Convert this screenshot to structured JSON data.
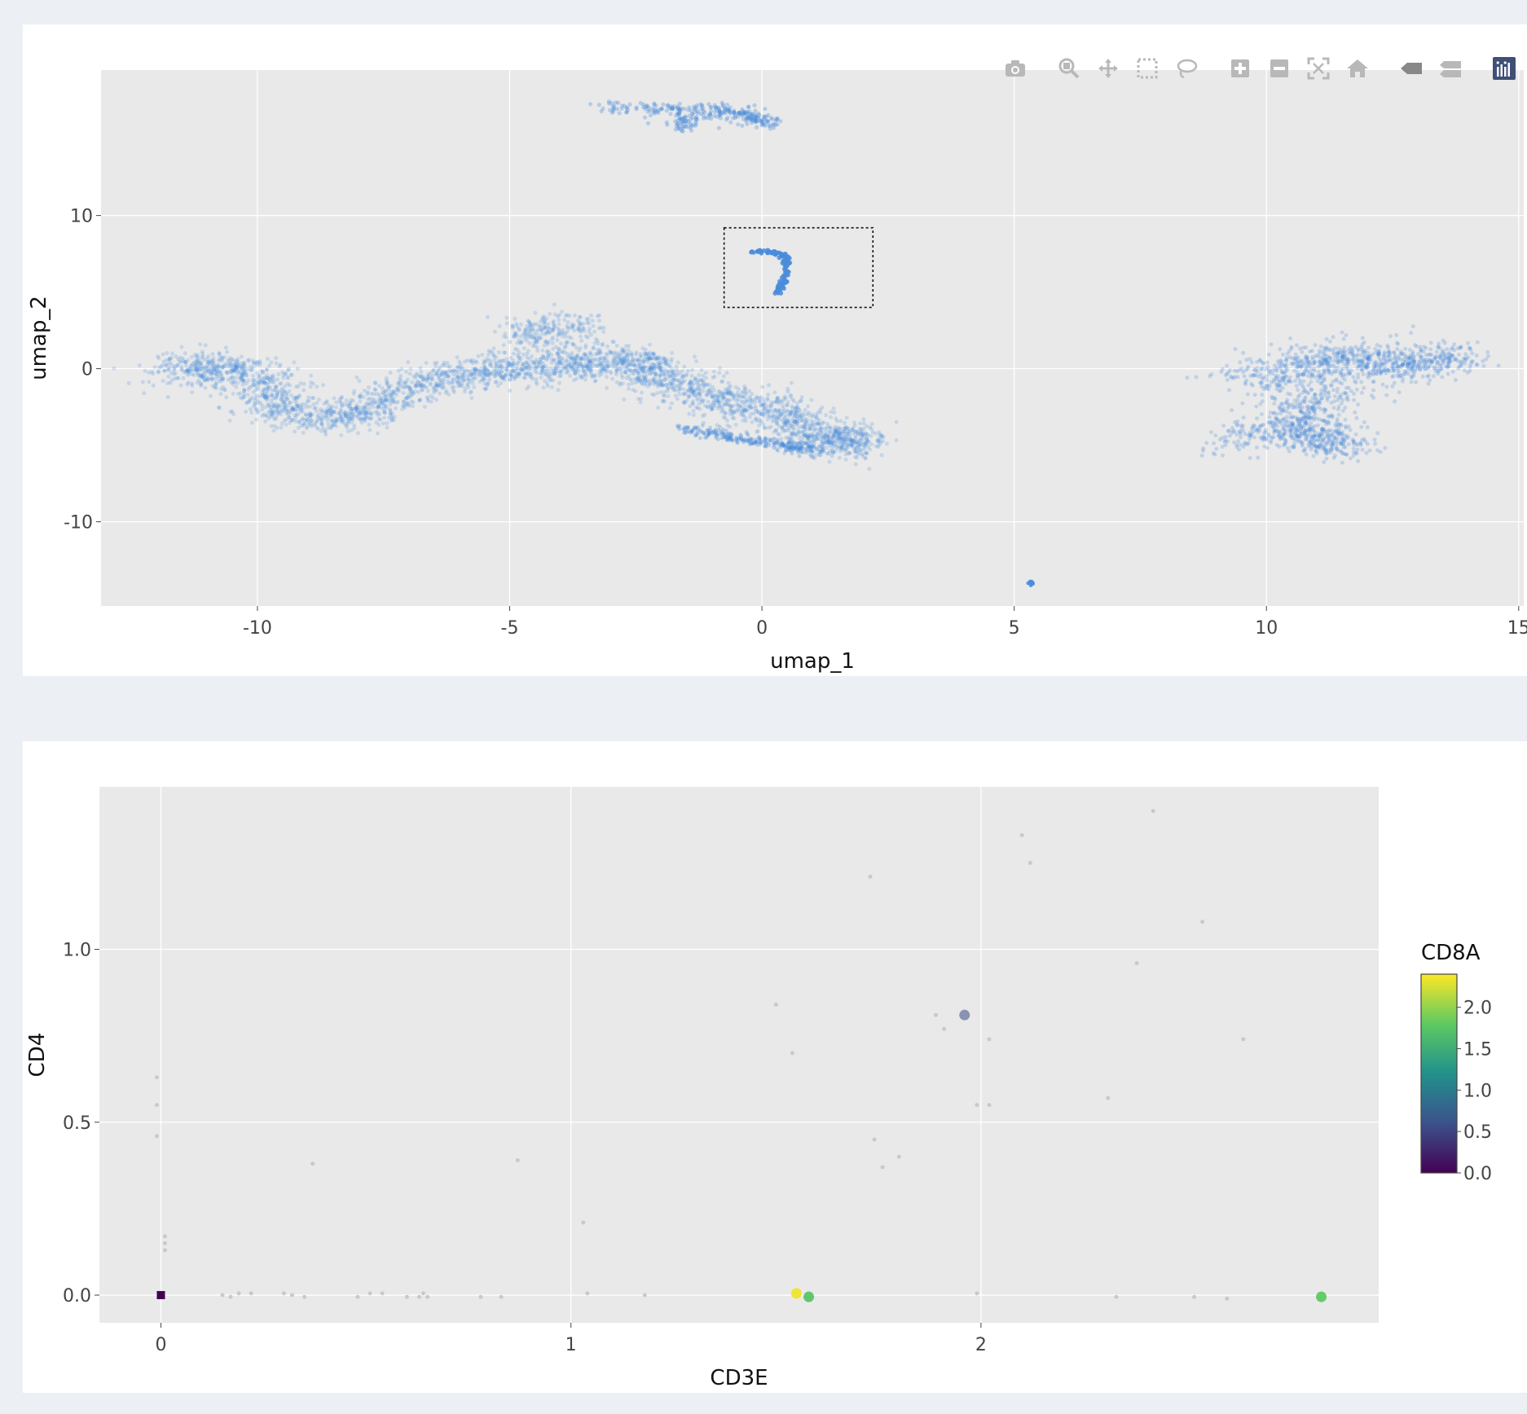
{
  "modebar": {
    "icons": [
      "camera-icon",
      "zoom-icon",
      "pan-icon",
      "box-select-icon",
      "lasso-icon",
      "zoom-in-icon",
      "zoom-out-icon",
      "autoscale-icon",
      "reset-axes-icon",
      "hover-closest-icon",
      "hover-compare-icon",
      "plotly-logo-icon"
    ]
  },
  "chart_data": [
    {
      "type": "scatter",
      "title": "",
      "xlabel": "umap_1",
      "ylabel": "umap_2",
      "xlim": [
        -13.1,
        15.1
      ],
      "ylim": [
        -15.5,
        19.5
      ],
      "xticks": [
        -10,
        -5,
        0,
        5,
        10,
        15
      ],
      "yticks": [
        -10,
        0,
        10
      ],
      "xtick_labels": [
        "-10",
        "-5",
        "0",
        "5",
        "10",
        "15"
      ],
      "ytick_labels": [
        "-10",
        "0",
        "10"
      ],
      "grid": true,
      "marker_color": "#4a8cdb",
      "selection_box": {
        "x0": -0.75,
        "x1": 2.2,
        "y0": 4.0,
        "y1": 9.2
      },
      "clusters": [
        {
          "name": "top",
          "points": [
            [
              -3.3,
              17.2
            ],
            [
              -2.5,
              17.0
            ],
            [
              -1.7,
              16.9
            ],
            [
              -0.9,
              16.9
            ],
            [
              -0.5,
              16.8
            ],
            [
              -0.1,
              16.4
            ],
            [
              0.1,
              16.0
            ],
            [
              -1.5,
              16.5
            ],
            [
              -1.6,
              15.6
            ]
          ],
          "spread": 0.22,
          "n": 320,
          "opacity": 0.32,
          "size": 2.6
        },
        {
          "name": "selected",
          "points": [
            [
              -0.2,
              7.7
            ],
            [
              0.2,
              7.6
            ],
            [
              0.45,
              7.4
            ],
            [
              0.5,
              6.8
            ],
            [
              0.45,
              6.0
            ],
            [
              0.4,
              5.4
            ],
            [
              0.3,
              4.9
            ]
          ],
          "spread": 0.06,
          "n": 110,
          "opacity": 0.85,
          "size": 2.8
        },
        {
          "name": "main-left",
          "points": [
            [
              -11.7,
              -0.1
            ],
            [
              -11.0,
              0.0
            ],
            [
              -10.0,
              -0.2
            ],
            [
              -9.7,
              -2.5
            ],
            [
              -8.6,
              -3.2
            ],
            [
              -7.6,
              -2.4
            ],
            [
              -6.6,
              -0.8
            ],
            [
              -5.6,
              -0.3
            ],
            [
              -4.6,
              0.1
            ],
            [
              -3.6,
              0.2
            ],
            [
              -2.6,
              0.6
            ],
            [
              -2.1,
              -0.3
            ],
            [
              -1.1,
              -1.9
            ],
            [
              0.1,
              -2.6
            ],
            [
              0.9,
              -4.1
            ],
            [
              1.6,
              -4.9
            ],
            [
              1.9,
              -4.5
            ],
            [
              -4.8,
              2.3
            ],
            [
              -3.6,
              2.7
            ]
          ],
          "spread": 0.55,
          "n": 3400,
          "opacity": 0.22,
          "size": 2.5
        },
        {
          "name": "lower-arc",
          "points": [
            [
              -1.6,
              -3.9
            ],
            [
              -0.6,
              -4.5
            ],
            [
              0.4,
              -5.0
            ],
            [
              1.2,
              -5.3
            ]
          ],
          "spread": 0.18,
          "n": 260,
          "opacity": 0.3,
          "size": 2.5
        },
        {
          "name": "right",
          "points": [
            [
              9.5,
              -0.1
            ],
            [
              10.3,
              -0.9
            ],
            [
              10.8,
              0.4
            ],
            [
              11.6,
              0.9
            ],
            [
              12.2,
              0.3
            ],
            [
              13.0,
              0.6
            ],
            [
              13.7,
              0.7
            ],
            [
              11.3,
              -1.6
            ],
            [
              10.6,
              -2.9
            ],
            [
              11.0,
              -4.2
            ],
            [
              11.6,
              -5.2
            ],
            [
              10.1,
              -3.9
            ],
            [
              9.4,
              -4.9
            ]
          ],
          "spread": 0.55,
          "n": 1500,
          "opacity": 0.25,
          "size": 2.5
        },
        {
          "name": "small",
          "points": [
            [
              5.35,
              -14.0
            ]
          ],
          "spread": 0.05,
          "n": 14,
          "opacity": 0.9,
          "size": 2.4
        }
      ]
    },
    {
      "type": "scatter",
      "title": "",
      "xlabel": "CD3E",
      "ylabel": "CD4",
      "xlim": [
        -0.15,
        2.97
      ],
      "ylim": [
        -0.08,
        1.47
      ],
      "xticks": [
        0,
        1,
        2
      ],
      "yticks": [
        0.0,
        0.5,
        1.0
      ],
      "xtick_labels": [
        "0",
        "1",
        "2"
      ],
      "ytick_labels": [
        "0.0",
        "0.5",
        "1.0"
      ],
      "grid": true,
      "color_var": "CD8A",
      "colorbar": {
        "title": "CD8A",
        "min": 0,
        "max": 2.4,
        "ticks": [
          0.0,
          0.5,
          1.0,
          1.5,
          2.0
        ],
        "tick_labels": [
          "0.0",
          "0.5",
          "1.0",
          "1.5",
          "2.0"
        ]
      },
      "colorscale": [
        "#440154",
        "#3b528b",
        "#21918c",
        "#5ec962",
        "#fde725"
      ],
      "points": [
        {
          "x": 0.0,
          "y": 0.0,
          "cd8a": 0.0
        },
        {
          "x": 1.96,
          "y": 0.81,
          "cd8a": 0.55
        },
        {
          "x": 1.55,
          "y": 0.005,
          "cd8a": 2.35
        },
        {
          "x": 1.58,
          "y": -0.005,
          "cd8a": 1.75
        },
        {
          "x": 2.83,
          "y": -0.005,
          "cd8a": 1.8
        }
      ],
      "faint_points": [
        [
          1.73,
          1.21
        ],
        [
          2.42,
          1.4
        ],
        [
          2.1,
          1.33
        ],
        [
          2.12,
          1.25
        ],
        [
          2.54,
          1.08
        ],
        [
          2.38,
          0.96
        ],
        [
          1.5,
          0.84
        ],
        [
          1.89,
          0.81
        ],
        [
          1.91,
          0.77
        ],
        [
          2.02,
          0.74
        ],
        [
          2.64,
          0.74
        ],
        [
          1.54,
          0.7
        ],
        [
          1.99,
          0.55
        ],
        [
          2.02,
          0.55
        ],
        [
          2.31,
          0.57
        ],
        [
          1.74,
          0.45
        ],
        [
          1.76,
          0.37
        ],
        [
          1.8,
          0.4
        ],
        [
          0.37,
          0.38
        ],
        [
          0.87,
          0.39
        ],
        [
          1.03,
          0.21
        ],
        [
          -0.01,
          0.63
        ],
        [
          -0.01,
          0.55
        ],
        [
          -0.01,
          0.46
        ],
        [
          0.01,
          0.17
        ],
        [
          0.01,
          0.15
        ],
        [
          0.01,
          0.13
        ],
        [
          0.15,
          0.0
        ],
        [
          0.17,
          -0.005
        ],
        [
          0.19,
          0.005
        ],
        [
          0.22,
          0.005
        ],
        [
          0.3,
          0.005
        ],
        [
          0.32,
          0.0
        ],
        [
          0.35,
          -0.005
        ],
        [
          0.48,
          -0.005
        ],
        [
          0.51,
          0.005
        ],
        [
          0.54,
          0.005
        ],
        [
          0.6,
          -0.005
        ],
        [
          0.63,
          -0.005
        ],
        [
          0.64,
          0.005
        ],
        [
          0.65,
          -0.005
        ],
        [
          0.78,
          -0.005
        ],
        [
          0.83,
          -0.005
        ],
        [
          1.04,
          0.005
        ],
        [
          1.18,
          0.0
        ],
        [
          1.99,
          0.005
        ],
        [
          2.33,
          -0.005
        ],
        [
          2.52,
          -0.005
        ],
        [
          2.6,
          -0.01
        ]
      ]
    }
  ]
}
